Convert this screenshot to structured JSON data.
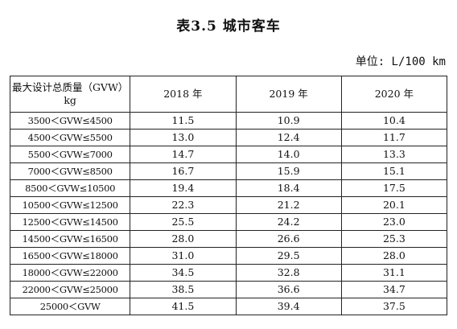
{
  "title": "表3.5 城市客车",
  "unit": "单位: L/100 km",
  "table": {
    "header": {
      "category_line1": "最大设计总质量（GVW）",
      "category_line2": "kg",
      "years": [
        "2018 年",
        "2019 年",
        "2020 年"
      ]
    },
    "rows": [
      {
        "category": "3500＜GVW≤4500",
        "v2018": "11.5",
        "v2019": "10.9",
        "v2020": "10.4"
      },
      {
        "category": "4500＜GVW≤5500",
        "v2018": "13.0",
        "v2019": "12.4",
        "v2020": "11.7"
      },
      {
        "category": "5500＜GVW≤7000",
        "v2018": "14.7",
        "v2019": "14.0",
        "v2020": "13.3"
      },
      {
        "category": "7000＜GVW≤8500",
        "v2018": "16.7",
        "v2019": "15.9",
        "v2020": "15.1"
      },
      {
        "category": "8500＜GVW≤10500",
        "v2018": "19.4",
        "v2019": "18.4",
        "v2020": "17.5"
      },
      {
        "category": "10500＜GVW≤12500",
        "v2018": "22.3",
        "v2019": "21.2",
        "v2020": "20.1"
      },
      {
        "category": "12500＜GVW≤14500",
        "v2018": "25.5",
        "v2019": "24.2",
        "v2020": "23.0"
      },
      {
        "category": "14500＜GVW≤16500",
        "v2018": "28.0",
        "v2019": "26.6",
        "v2020": "25.3"
      },
      {
        "category": "16500＜GVW≤18000",
        "v2018": "31.0",
        "v2019": "29.5",
        "v2020": "28.0"
      },
      {
        "category": "18000＜GVW≤22000",
        "v2018": "34.5",
        "v2019": "32.8",
        "v2020": "31.1"
      },
      {
        "category": "22000＜GVW≤25000",
        "v2018": "38.5",
        "v2019": "36.6",
        "v2020": "34.7"
      },
      {
        "category": "25000＜GVW",
        "v2018": "41.5",
        "v2019": "39.4",
        "v2020": "37.5"
      }
    ]
  }
}
